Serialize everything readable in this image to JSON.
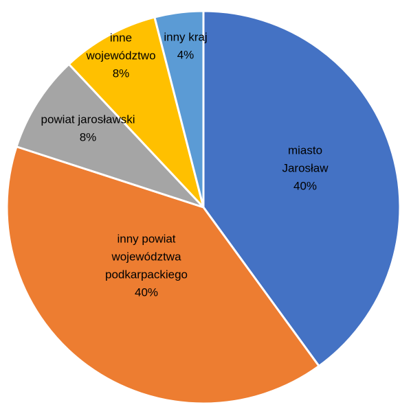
{
  "chart_data": {
    "type": "pie",
    "title": "",
    "legend": "none",
    "start_angle_deg": 0,
    "direction": "clockwise",
    "slices": [
      {
        "label": "miasto Jarosław",
        "label_lines": [
          "miasto",
          "Jarosław"
        ],
        "percent_label": "40%",
        "value": 40,
        "color": "#4472C4"
      },
      {
        "label": "inny powiat województwa podkarpackiego",
        "label_lines": [
          "inny powiat",
          "województwa",
          "podkarpackiego"
        ],
        "percent_label": "40%",
        "value": 40,
        "color": "#ED7D31"
      },
      {
        "label": "powiat jarosławski",
        "label_lines": [
          "powiat jarosławski"
        ],
        "percent_label": "8%",
        "value": 8,
        "color": "#A5A5A5"
      },
      {
        "label": "inne województwo",
        "label_lines": [
          "inne",
          "województwo"
        ],
        "percent_label": "8%",
        "value": 8,
        "color": "#FFC000"
      },
      {
        "label": "inny kraj",
        "label_lines": [
          "inny kraj"
        ],
        "percent_label": "4%",
        "value": 4,
        "color": "#5B9BD5"
      }
    ]
  }
}
